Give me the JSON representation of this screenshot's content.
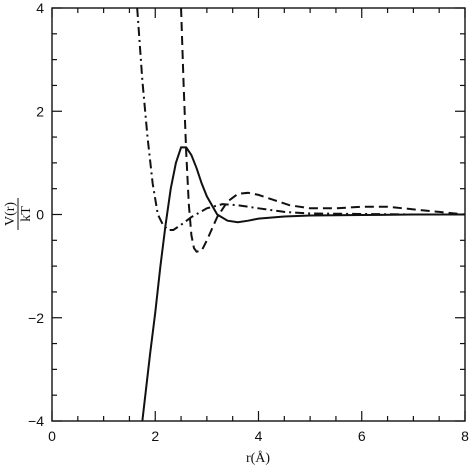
{
  "chart_data": {
    "type": "line",
    "title": "",
    "xlabel": "r(Å)",
    "ylabel": {
      "numerator": "V(r)",
      "denominator": "kT"
    },
    "xlim": [
      0,
      8
    ],
    "ylim": [
      -4,
      4
    ],
    "xticks": [
      0,
      2,
      4,
      6,
      8
    ],
    "yticks": [
      -4,
      -2,
      0,
      2,
      4
    ],
    "xtick_labels": [
      "0",
      "2",
      "4",
      "6",
      "8"
    ],
    "ytick_labels": [
      "−4",
      "−2",
      "0",
      "2",
      "4"
    ],
    "grid": false,
    "legend": "none",
    "series": [
      {
        "style": "solid",
        "x": [
          1.75,
          1.9,
          2.0,
          2.1,
          2.2,
          2.3,
          2.4,
          2.5,
          2.6,
          2.7,
          2.8,
          2.9,
          3.0,
          3.2,
          3.4,
          3.6,
          3.8,
          4.0,
          4.5,
          5.0,
          6.0,
          7.0,
          8.0
        ],
        "y": [
          -4.0,
          -2.7,
          -1.9,
          -1.0,
          -0.2,
          0.5,
          1.0,
          1.3,
          1.3,
          1.15,
          0.9,
          0.6,
          0.35,
          0.0,
          -0.12,
          -0.15,
          -0.12,
          -0.08,
          -0.04,
          -0.02,
          -0.01,
          0.0,
          0.0
        ]
      },
      {
        "style": "dashed",
        "x": [
          2.5,
          2.55,
          2.6,
          2.65,
          2.7,
          2.75,
          2.8,
          2.9,
          3.0,
          3.2,
          3.4,
          3.6,
          3.8,
          4.0,
          4.3,
          4.6,
          5.0,
          5.5,
          6.0,
          6.5,
          7.0,
          7.5,
          8.0
        ],
        "y": [
          4.0,
          2.5,
          1.2,
          0.2,
          -0.4,
          -0.65,
          -0.72,
          -0.7,
          -0.5,
          -0.05,
          0.25,
          0.4,
          0.42,
          0.38,
          0.28,
          0.18,
          0.12,
          0.12,
          0.15,
          0.15,
          0.1,
          0.05,
          0.0
        ]
      },
      {
        "style": "dashdot",
        "x": [
          1.65,
          1.75,
          1.85,
          1.95,
          2.05,
          2.15,
          2.25,
          2.35,
          2.5,
          2.7,
          3.0,
          3.3,
          3.6,
          4.0,
          4.5,
          5.0,
          6.0,
          7.0,
          8.0
        ],
        "y": [
          4.0,
          2.6,
          1.5,
          0.6,
          0.0,
          -0.2,
          -0.3,
          -0.3,
          -0.2,
          -0.05,
          0.12,
          0.2,
          0.18,
          0.12,
          0.05,
          0.02,
          0.01,
          0.0,
          0.0
        ]
      }
    ]
  }
}
